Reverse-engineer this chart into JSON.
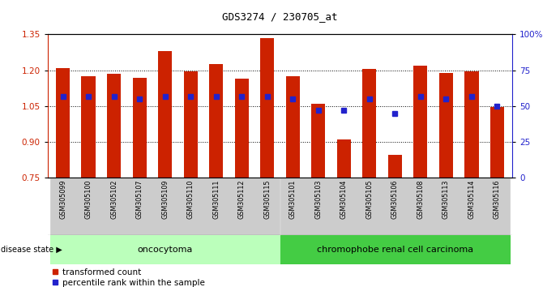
{
  "title": "GDS3274 / 230705_at",
  "samples": [
    "GSM305099",
    "GSM305100",
    "GSM305102",
    "GSM305107",
    "GSM305109",
    "GSM305110",
    "GSM305111",
    "GSM305112",
    "GSM305115",
    "GSM305101",
    "GSM305103",
    "GSM305104",
    "GSM305105",
    "GSM305106",
    "GSM305108",
    "GSM305113",
    "GSM305114",
    "GSM305116"
  ],
  "transformed_count": [
    1.21,
    1.175,
    1.185,
    1.17,
    1.28,
    1.195,
    1.225,
    1.165,
    1.335,
    1.175,
    1.06,
    0.91,
    1.205,
    0.845,
    1.22,
    1.19,
    1.195,
    1.045
  ],
  "percentile_rank": [
    57,
    57,
    57,
    55,
    57,
    57,
    57,
    57,
    57,
    55,
    47,
    47,
    55,
    45,
    57,
    55,
    57,
    50
  ],
  "ylim_left": [
    0.75,
    1.35
  ],
  "ylim_right": [
    0,
    100
  ],
  "yticks_left": [
    0.75,
    0.9,
    1.05,
    1.2,
    1.35
  ],
  "yticks_right": [
    0,
    25,
    50,
    75,
    100
  ],
  "ytick_labels_right": [
    "0",
    "25",
    "50",
    "75",
    "100%"
  ],
  "bar_color": "#CC2200",
  "marker_color": "#2222CC",
  "bar_bottom": 0.75,
  "oncocytoma_count": 9,
  "chromophobe_count": 9,
  "group1_label": "oncocytoma",
  "group2_label": "chromophobe renal cell carcinoma",
  "disease_state_label": "disease state",
  "legend1": "transformed count",
  "legend2": "percentile rank within the sample",
  "bg_color_group1": "#BBFFBB",
  "bg_color_group2": "#44CC44",
  "bar_width": 0.55
}
